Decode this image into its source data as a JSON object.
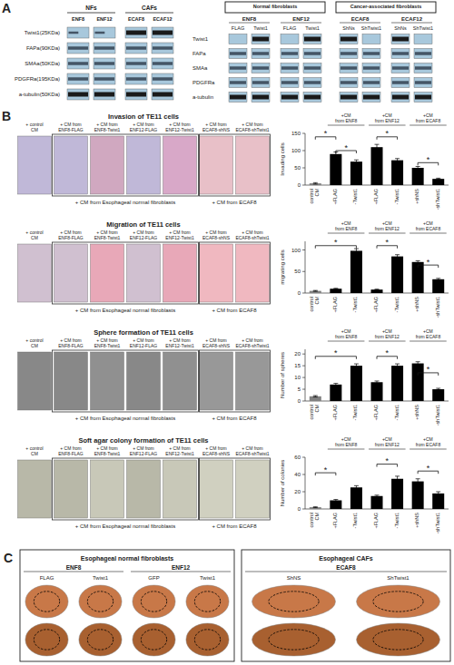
{
  "chart_data": [
    {
      "type": "blot",
      "panel": "A",
      "groups": [
        {
          "name": "NFs",
          "columns": [
            "ENF8",
            "ENF12"
          ]
        },
        {
          "name": "CAFs",
          "columns": [
            "ECAF8",
            "ECAF12"
          ]
        }
      ],
      "rows": [
        "Twist1(25KDa)",
        "FAPa(90KDa)",
        "SMAa(50KDa)",
        "PDGFRa(195KDa)",
        "a-tubulin(50KDa)"
      ],
      "color": "#a8c8dc",
      "band_colors": [
        "#1a1a1a",
        "#445566"
      ]
    },
    {
      "type": "blot",
      "groups": [
        {
          "name": "Normal fibroblasts",
          "groups": [
            {
              "name": "ENF8",
              "columns": [
                "FLAG",
                "Twist1"
              ]
            },
            {
              "name": "ENF12",
              "columns": [
                "FLAG",
                "Twist1"
              ]
            }
          ]
        },
        {
          "name": "Cancer-associated fibroblasts",
          "groups": [
            {
              "name": "ECAF8",
              "columns": [
                "ShNs",
                "ShTwist1"
              ]
            },
            {
              "name": "ECAF12",
              "columns": [
                "ShNs",
                "ShTwist1"
              ]
            }
          ]
        }
      ],
      "rows": [
        "Twist1",
        "FAPa",
        "SMAa",
        "PDGFRa",
        "a-tubulin"
      ],
      "color": "#a8c8dc",
      "band_colors": [
        "#1a1a1a",
        "#445566"
      ]
    },
    {
      "type": "bar",
      "panel": "B",
      "title": "Invasion of TE11 cells",
      "categories": [
        "control\nCM",
        "+FLAG",
        "-Twist1",
        "+FLAG",
        "-Twist1",
        "+shNS",
        "-shTwist1"
      ],
      "values": [
        5,
        90,
        68,
        110,
        72,
        50,
        18
      ],
      "errors": [
        2,
        6,
        5,
        8,
        5,
        4,
        2
      ],
      "colors": [
        "#808080",
        "#000000",
        "#000000",
        "#000000",
        "#000000",
        "#000000",
        "#000000"
      ],
      "ylabel": "Invading cells",
      "ylim": [
        0,
        150
      ],
      "yticks": [
        0,
        50,
        100,
        150
      ],
      "grid": false,
      "significance": [
        {
          "from": 0,
          "to": 1,
          "y": 140,
          "label": "*"
        },
        {
          "from": 1,
          "to": 2,
          "y": 100,
          "label": "*"
        },
        {
          "from": 3,
          "to": 4,
          "y": 140,
          "label": "*"
        },
        {
          "from": 5,
          "to": 6,
          "y": 65,
          "label": "*"
        }
      ],
      "annotations": [
        "+CM\nfrom ENF8",
        "+CM\nfrom ENF12",
        "+CM\nfrom ECAF8"
      ],
      "images": {
        "labels": [
          "+ control\nCM",
          "+ CM from\nENF8-FLAG",
          "+ CM from\nENF8-Twist1",
          "+ CM from\nENF12-FLAG",
          "+ CM from\nENF12-Twist1",
          "+ CM from\nECAF8-shNS",
          "+ CM from\nECAF8-shTwist1"
        ],
        "colors": [
          "#c0b8d8",
          "#c0b8d8",
          "#d0a8c0",
          "#c0b8d8",
          "#d8a8c8",
          "#e8c0c8",
          "#e8c0c8"
        ],
        "captions": [
          "+ CM from Esophageal normal fibroblasts",
          "+ CM from ECAF8"
        ]
      }
    },
    {
      "type": "bar",
      "title": "Migration of TE11 cells",
      "categories": [
        "control\nCM",
        "+FLAG",
        "-Twist1",
        "+FLAG",
        "-Twist1",
        "+shNS",
        "-shTwist1"
      ],
      "values": [
        5,
        10,
        98,
        8,
        85,
        72,
        32
      ],
      "errors": [
        1,
        1,
        5,
        1,
        4,
        3,
        2
      ],
      "colors": [
        "#808080",
        "#000000",
        "#000000",
        "#000000",
        "#000000",
        "#000000",
        "#000000"
      ],
      "ylabel": "migrating cells",
      "ylim": [
        0,
        120
      ],
      "yticks": [
        0,
        50,
        100
      ],
      "grid": false,
      "significance": [
        {
          "from": 0,
          "to": 2,
          "y": 110,
          "label": "*"
        },
        {
          "from": 3,
          "to": 4,
          "y": 110,
          "label": "*"
        },
        {
          "from": 5,
          "to": 6,
          "y": 65,
          "label": "*"
        }
      ],
      "annotations": [
        "+CM\nfrom ENF8",
        "+CM\nfrom ENF12",
        "+CM\nfrom ECAF8"
      ],
      "images": {
        "labels": [
          "+ control\nCM",
          "+ CM from\nENF8-FLAG",
          "+ CM from\nENF8-Twist1",
          "+ CM from\nENF12-FLAG",
          "+ CM from\nENF12-Twist1",
          "+ CM from\nECAF8-shNS",
          "+ CM from\nECAF8-shTwist1"
        ],
        "colors": [
          "#d0c0d0",
          "#d0c0d0",
          "#e8a8b8",
          "#d0c0d0",
          "#e8a8b8",
          "#f0b8c0",
          "#f0b8c0"
        ],
        "captions": [
          "+ CM from Esophageal normal fibroblasts",
          "+ CM from ECAF8"
        ]
      }
    },
    {
      "type": "bar",
      "title": "Sphere formation of TE11 cells",
      "categories": [
        "control\nCM",
        "+FLAG",
        "-Twist1",
        "+FLAG",
        "-Twist1",
        "+shNS",
        "-shTwist1"
      ],
      "values": [
        2,
        7,
        15,
        8,
        15,
        16,
        5
      ],
      "errors": [
        0.3,
        0.5,
        0.8,
        0.5,
        0.8,
        0.7,
        0.4
      ],
      "colors": [
        "#808080",
        "#000000",
        "#000000",
        "#000000",
        "#000000",
        "#000000",
        "#000000"
      ],
      "ylabel": "Number of spheres",
      "ylim": [
        0,
        22
      ],
      "yticks": [
        0,
        5,
        10,
        15,
        20
      ],
      "grid": false,
      "significance": [
        {
          "from": 0,
          "to": 2,
          "y": 19,
          "label": "*"
        },
        {
          "from": 3,
          "to": 4,
          "y": 19,
          "label": "*"
        },
        {
          "from": 5,
          "to": 6,
          "y": 12,
          "label": "*"
        }
      ],
      "annotations": [
        "+CM\nfrom ENF8",
        "+CM\nfrom ENF12",
        "+CM\nfrom ECAF8"
      ],
      "images": {
        "labels": [
          "+ control\nCM",
          "+ CM from\nENF8-FLAG",
          "+ CM from\nENF8-Twist1",
          "+ CM from\nENF12-FLAG",
          "+ CM from\nENF12-Twist1",
          "+ CM from\nECAF8-shNS",
          "+ CM from\nECAF8-shTwist1"
        ],
        "colors": [
          "#888888",
          "#888888",
          "#909090",
          "#888888",
          "#909090",
          "#989898",
          "#989898"
        ],
        "captions": [
          "+ CM from Esophageal normal fibroblasts",
          "+ CM from ECAF8"
        ]
      }
    },
    {
      "type": "bar",
      "title": "Soft agar colony formation of TE11 cells",
      "categories": [
        "control\nCM",
        "+FLAG",
        "-Twist1",
        "+FLAG",
        "-Twist1",
        "+shNS",
        "-shTwist1"
      ],
      "values": [
        2,
        10,
        25,
        15,
        35,
        32,
        18
      ],
      "errors": [
        0.5,
        1,
        2,
        1,
        3,
        3,
        2
      ],
      "colors": [
        "#808080",
        "#000000",
        "#000000",
        "#000000",
        "#000000",
        "#000000",
        "#000000"
      ],
      "ylabel": "Number of colonies",
      "ylim": [
        0,
        60
      ],
      "yticks": [
        0,
        20,
        40,
        60
      ],
      "grid": false,
      "significance": [
        {
          "from": 0,
          "to": 1,
          "y": 42,
          "label": "*"
        },
        {
          "from": 3,
          "to": 4,
          "y": 52,
          "label": "*"
        },
        {
          "from": 5,
          "to": 6,
          "y": 44,
          "label": "*"
        }
      ],
      "annotations": [
        "+CM\nfrom ENF8",
        "+CM\nfrom ENF12",
        "+CM\nfrom ECAF8"
      ],
      "images": {
        "labels": [
          "+ control\nCM",
          "+ CM from\nENF8-FLAG",
          "+ CM from\nENF8-Twist1",
          "+ CM from\nENF12-FLAG",
          "+ CM from\nENF12-Twist1",
          "+ CM from\nECAF8-shNS",
          "+ CM from\nECAF8-shTwist1"
        ],
        "colors": [
          "#b8b8a8",
          "#b8b8a8",
          "#c8c8b8",
          "#b8b8a8",
          "#c8c8b8",
          "#d0d0c0",
          "#d0d0c0"
        ],
        "captions": [
          "+ CM from Esophageal normal fibroblasts",
          "+ CM from ECAF8"
        ]
      }
    },
    {
      "type": "gel",
      "panel": "C",
      "title": "Esophageal normal fibroblasts",
      "groups": [
        {
          "name": "ENF8",
          "columns": [
            "FLAG",
            "Twist1"
          ]
        },
        {
          "name": "ENF12",
          "columns": [
            "GFP",
            "Twist1"
          ]
        }
      ],
      "colors": [
        "#c87848",
        "#a86030"
      ],
      "color": "#000000",
      "line_style": "dashed"
    },
    {
      "type": "gel",
      "title": "Esophageal CAFs",
      "groups": [
        {
          "name": "ECAF8",
          "columns": [
            "ShNS",
            "ShTwist1"
          ]
        }
      ],
      "colors": [
        "#c87848",
        "#a86030"
      ],
      "color": "#000000",
      "line_style": "dashed"
    }
  ]
}
